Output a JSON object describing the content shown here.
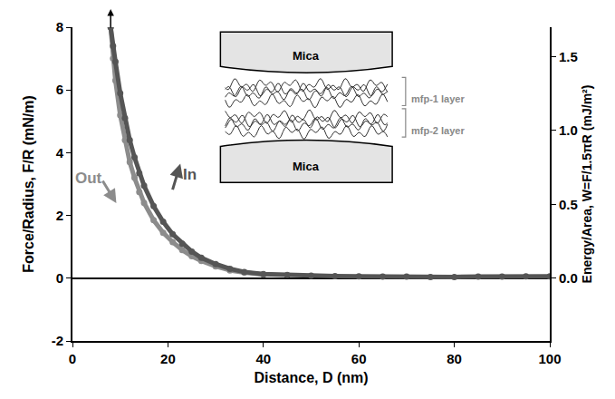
{
  "chart_data": {
    "type": "line",
    "x_label": "Distance, D (nm)",
    "y_label": "Force/Radius, F/R (mN/m)",
    "y2_label": "Energy/Area, W=F/1.5πR (mJ/m²)",
    "xlim": [
      0,
      100
    ],
    "xticks": [
      0,
      20,
      40,
      60,
      80,
      100
    ],
    "ylim": [
      -2,
      8
    ],
    "yticks": [
      -2,
      0,
      2,
      4,
      6,
      8
    ],
    "y2lim": [
      -0.424,
      1.698
    ],
    "y2ticks": [
      {
        "value": 0,
        "label": "0.0"
      },
      {
        "value": 0.5,
        "label": "0.5"
      },
      {
        "value": 1,
        "label": "1.0"
      },
      {
        "value": 1.5,
        "label": "1.5"
      }
    ],
    "grid": false,
    "marker": "circle",
    "series": [
      {
        "name": "Out",
        "color": "#8c8c8c",
        "x": [
          8,
          8.5,
          9,
          10,
          11,
          12,
          13,
          14,
          15,
          17,
          19,
          21,
          23,
          25,
          27,
          30,
          33,
          36,
          40
        ],
        "values": [
          8,
          7.0,
          6.3,
          5.2,
          4.4,
          3.7,
          3.2,
          2.75,
          2.4,
          1.85,
          1.45,
          1.15,
          0.9,
          0.7,
          0.55,
          0.38,
          0.25,
          0.18,
          0.12
        ]
      },
      {
        "name": "In",
        "color": "#555555",
        "x": [
          8,
          8.5,
          9,
          10,
          11,
          12,
          13,
          14,
          15,
          17,
          19,
          21,
          23,
          25,
          27,
          30,
          33,
          36,
          40,
          45,
          50,
          55,
          60,
          65,
          70,
          75,
          80,
          85,
          90,
          95,
          100
        ],
        "values": [
          8,
          7.4,
          6.9,
          5.9,
          5.1,
          4.4,
          3.85,
          3.35,
          2.95,
          2.3,
          1.8,
          1.4,
          1.1,
          0.85,
          0.65,
          0.45,
          0.3,
          0.2,
          0.13,
          0.1,
          0.08,
          0.07,
          0.06,
          0.05,
          0.05,
          0.04,
          0.04,
          0.05,
          0.05,
          0.06,
          0.06
        ]
      }
    ],
    "annotations": [
      {
        "text": "In",
        "x": 24.5,
        "y": 3.3,
        "color": "#555555"
      },
      {
        "text": "Out",
        "x": 3.5,
        "y": 3.2,
        "color": "#8c8c8c"
      }
    ],
    "inset_labels": [
      "Mica",
      "mfp-1 layer",
      "mfp-2 layer",
      "Mica"
    ]
  }
}
